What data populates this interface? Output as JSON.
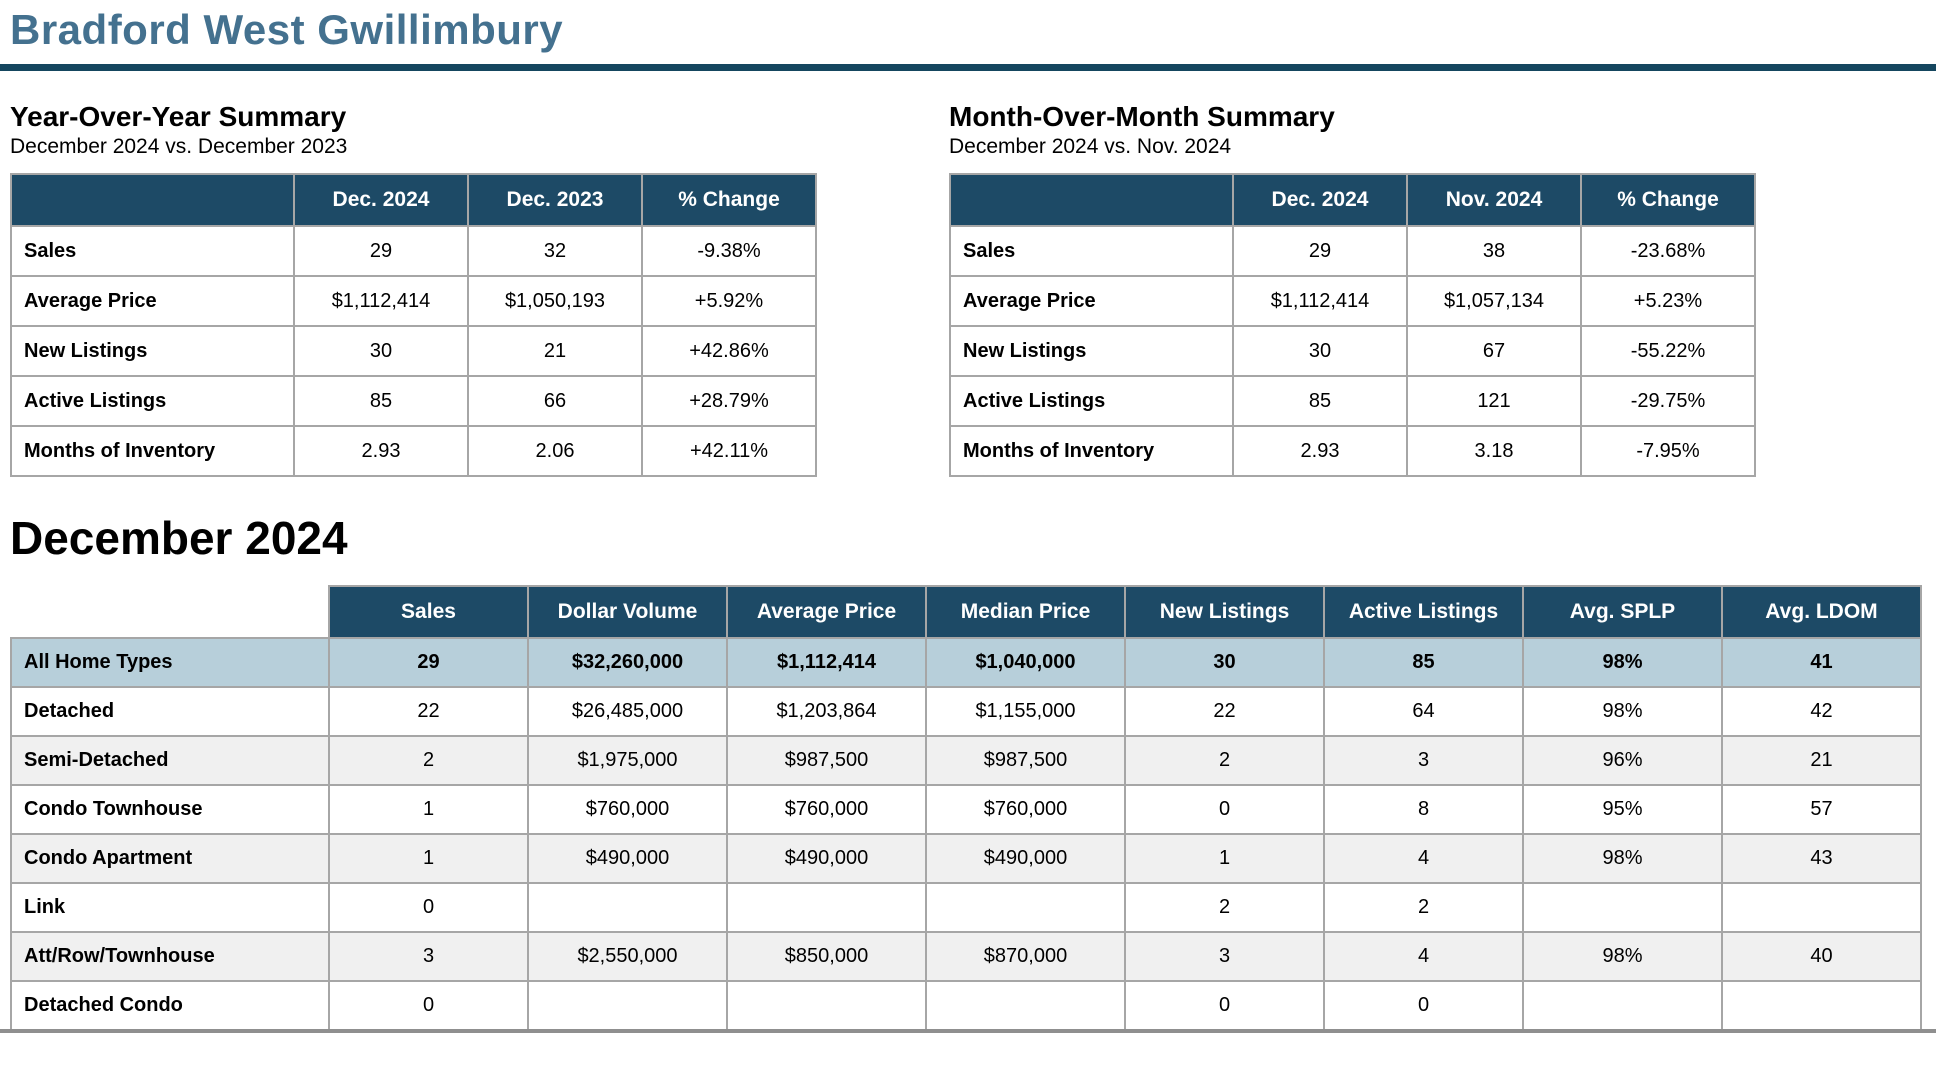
{
  "page": {
    "title": "Bradford West Gwillimbury"
  },
  "colors": {
    "title_text": "#44718f",
    "rule": "#15465f",
    "header_bg": "#1d4a66",
    "highlight_row": "#b7cfda",
    "alt_row": "#f0f0f0",
    "border": "#a6a6a6",
    "bottom_rule": "#8f8f8f"
  },
  "yoy": {
    "title": "Year-Over-Year Summary",
    "subtitle": "December 2024 vs. December 2023",
    "columns": [
      "",
      "Dec. 2024",
      "Dec. 2023",
      "% Change"
    ],
    "rows": [
      {
        "label": "Sales",
        "values": [
          "29",
          "32",
          "-9.38%"
        ]
      },
      {
        "label": "Average Price",
        "values": [
          "$1,112,414",
          "$1,050,193",
          "+5.92%"
        ]
      },
      {
        "label": "New Listings",
        "values": [
          "30",
          "21",
          "+42.86%"
        ]
      },
      {
        "label": "Active Listings",
        "values": [
          "85",
          "66",
          "+28.79%"
        ]
      },
      {
        "label": "Months of Inventory",
        "values": [
          "2.93",
          "2.06",
          "+42.11%"
        ]
      }
    ]
  },
  "mom": {
    "title": "Month-Over-Month Summary",
    "subtitle": "December 2024 vs. Nov. 2024",
    "columns": [
      "",
      "Dec. 2024",
      "Nov. 2024",
      "% Change"
    ],
    "rows": [
      {
        "label": "Sales",
        "values": [
          "29",
          "38",
          "-23.68%"
        ]
      },
      {
        "label": "Average Price",
        "values": [
          "$1,112,414",
          "$1,057,134",
          "+5.23%"
        ]
      },
      {
        "label": "New Listings",
        "values": [
          "30",
          "67",
          "-55.22%"
        ]
      },
      {
        "label": "Active Listings",
        "values": [
          "85",
          "121",
          "-29.75%"
        ]
      },
      {
        "label": "Months of Inventory",
        "values": [
          "2.93",
          "3.18",
          "-7.95%"
        ]
      }
    ]
  },
  "december": {
    "title": "December 2024",
    "columns": [
      "",
      "Sales",
      "Dollar Volume",
      "Average Price",
      "Median Price",
      "New Listings",
      "Active Listings",
      "Avg. SPLP",
      "Avg. LDOM"
    ],
    "rows": [
      {
        "label": "All Home Types",
        "highlight": true,
        "values": [
          "29",
          "$32,260,000",
          "$1,112,414",
          "$1,040,000",
          "30",
          "85",
          "98%",
          "41"
        ]
      },
      {
        "label": "Detached",
        "values": [
          "22",
          "$26,485,000",
          "$1,203,864",
          "$1,155,000",
          "22",
          "64",
          "98%",
          "42"
        ]
      },
      {
        "label": "Semi-Detached",
        "values": [
          "2",
          "$1,975,000",
          "$987,500",
          "$987,500",
          "2",
          "3",
          "96%",
          "21"
        ]
      },
      {
        "label": "Condo Townhouse",
        "values": [
          "1",
          "$760,000",
          "$760,000",
          "$760,000",
          "0",
          "8",
          "95%",
          "57"
        ]
      },
      {
        "label": "Condo Apartment",
        "values": [
          "1",
          "$490,000",
          "$490,000",
          "$490,000",
          "1",
          "4",
          "98%",
          "43"
        ]
      },
      {
        "label": "Link",
        "values": [
          "0",
          "",
          "",
          "",
          "2",
          "2",
          "",
          ""
        ]
      },
      {
        "label": "Att/Row/Townhouse",
        "values": [
          "3",
          "$2,550,000",
          "$850,000",
          "$870,000",
          "3",
          "4",
          "98%",
          "40"
        ]
      },
      {
        "label": "Detached Condo",
        "values": [
          "0",
          "",
          "",
          "",
          "0",
          "0",
          "",
          ""
        ]
      }
    ]
  }
}
